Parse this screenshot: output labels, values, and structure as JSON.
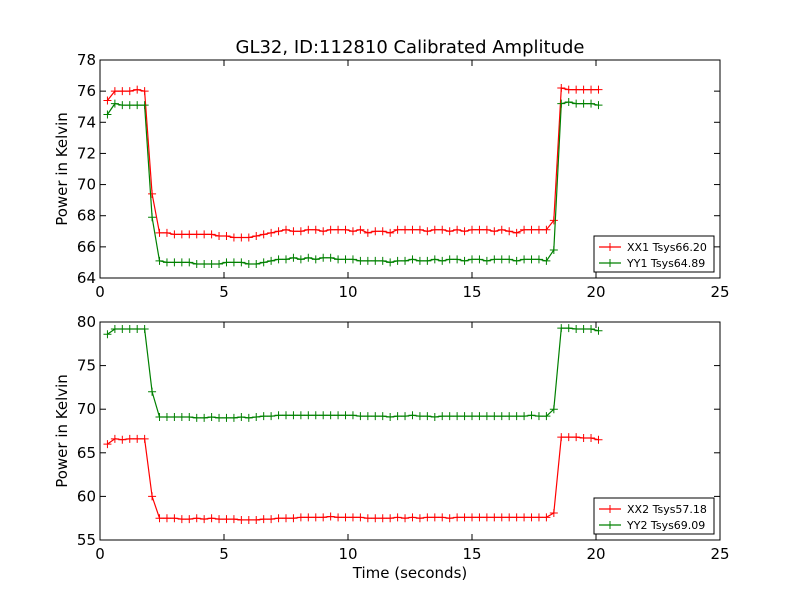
{
  "figure": {
    "title": "GL32, ID:112810 Calibrated Amplitude"
  },
  "chart_data": [
    {
      "type": "line",
      "title": "GL32, ID:112810 Calibrated Amplitude",
      "xlabel": "",
      "ylabel": "Power in Kelvin",
      "xlim": [
        0,
        25
      ],
      "ylim": [
        64,
        78
      ],
      "xticks": [
        0,
        5,
        10,
        15,
        20,
        25
      ],
      "yticks": [
        64,
        66,
        68,
        70,
        72,
        74,
        76,
        78
      ],
      "grid": false,
      "legend": "bottom-right",
      "x": [
        0.3,
        0.6,
        0.9,
        1.2,
        1.5,
        1.8,
        2.1,
        2.4,
        2.7,
        3.0,
        3.3,
        3.6,
        3.9,
        4.2,
        4.5,
        4.8,
        5.1,
        5.4,
        5.7,
        6.0,
        6.3,
        6.6,
        6.9,
        7.2,
        7.5,
        7.8,
        8.1,
        8.4,
        8.7,
        9.0,
        9.3,
        9.6,
        9.9,
        10.2,
        10.5,
        10.8,
        11.1,
        11.4,
        11.7,
        12.0,
        12.3,
        12.6,
        12.9,
        13.2,
        13.5,
        13.8,
        14.1,
        14.4,
        14.7,
        15.0,
        15.3,
        15.6,
        15.9,
        16.2,
        16.5,
        16.8,
        17.1,
        17.4,
        17.7,
        18.0,
        18.3,
        18.6,
        18.9,
        19.2,
        19.5,
        19.8,
        20.1
      ],
      "series": [
        {
          "name": "XX1 Tsys66.20",
          "color": "#ff0000",
          "values": [
            75.4,
            76.0,
            76.0,
            76.0,
            76.1,
            76.0,
            69.4,
            66.9,
            66.9,
            66.8,
            66.8,
            66.8,
            66.8,
            66.8,
            66.8,
            66.7,
            66.7,
            66.6,
            66.6,
            66.6,
            66.7,
            66.8,
            66.9,
            67.0,
            67.1,
            67.0,
            67.0,
            67.1,
            67.1,
            67.0,
            67.1,
            67.1,
            67.1,
            67.0,
            67.1,
            66.9,
            67.0,
            67.0,
            66.9,
            67.1,
            67.1,
            67.1,
            67.1,
            67.0,
            67.1,
            67.1,
            67.0,
            67.1,
            67.0,
            67.1,
            67.1,
            67.1,
            67.0,
            67.1,
            67.0,
            66.9,
            67.1,
            67.1,
            67.1,
            67.1,
            67.7,
            76.2,
            76.1,
            76.1,
            76.1,
            76.1,
            76.1
          ]
        },
        {
          "name": "YY1 Tsys64.89",
          "color": "#008000",
          "values": [
            74.5,
            75.2,
            75.1,
            75.1,
            75.1,
            75.1,
            67.9,
            65.1,
            65.0,
            65.0,
            65.0,
            65.0,
            64.9,
            64.9,
            64.9,
            64.9,
            65.0,
            65.0,
            65.0,
            64.9,
            64.9,
            65.0,
            65.1,
            65.2,
            65.2,
            65.3,
            65.2,
            65.3,
            65.2,
            65.3,
            65.3,
            65.2,
            65.2,
            65.2,
            65.1,
            65.1,
            65.1,
            65.1,
            65.0,
            65.1,
            65.1,
            65.2,
            65.1,
            65.1,
            65.2,
            65.1,
            65.2,
            65.2,
            65.1,
            65.2,
            65.2,
            65.1,
            65.2,
            65.2,
            65.2,
            65.1,
            65.2,
            65.2,
            65.2,
            65.1,
            65.8,
            75.2,
            75.3,
            75.2,
            75.2,
            75.2,
            75.1
          ]
        }
      ]
    },
    {
      "type": "line",
      "title": "",
      "xlabel": "Time (seconds)",
      "ylabel": "Power in Kelvin",
      "xlim": [
        0,
        25
      ],
      "ylim": [
        55,
        80
      ],
      "xticks": [
        0,
        5,
        10,
        15,
        20,
        25
      ],
      "yticks": [
        55,
        60,
        65,
        70,
        75,
        80
      ],
      "grid": false,
      "legend": "bottom-right",
      "x": [
        0.3,
        0.6,
        0.9,
        1.2,
        1.5,
        1.8,
        2.1,
        2.4,
        2.7,
        3.0,
        3.3,
        3.6,
        3.9,
        4.2,
        4.5,
        4.8,
        5.1,
        5.4,
        5.7,
        6.0,
        6.3,
        6.6,
        6.9,
        7.2,
        7.5,
        7.8,
        8.1,
        8.4,
        8.7,
        9.0,
        9.3,
        9.6,
        9.9,
        10.2,
        10.5,
        10.8,
        11.1,
        11.4,
        11.7,
        12.0,
        12.3,
        12.6,
        12.9,
        13.2,
        13.5,
        13.8,
        14.1,
        14.4,
        14.7,
        15.0,
        15.3,
        15.6,
        15.9,
        16.2,
        16.5,
        16.8,
        17.1,
        17.4,
        17.7,
        18.0,
        18.3,
        18.6,
        18.9,
        19.2,
        19.5,
        19.8,
        20.1
      ],
      "series": [
        {
          "name": "XX2 Tsys57.18",
          "color": "#ff0000",
          "values": [
            66.0,
            66.6,
            66.5,
            66.6,
            66.6,
            66.6,
            60.0,
            57.5,
            57.5,
            57.5,
            57.4,
            57.4,
            57.5,
            57.4,
            57.5,
            57.4,
            57.4,
            57.4,
            57.3,
            57.3,
            57.3,
            57.4,
            57.4,
            57.5,
            57.5,
            57.5,
            57.6,
            57.6,
            57.6,
            57.6,
            57.7,
            57.6,
            57.6,
            57.6,
            57.6,
            57.5,
            57.5,
            57.5,
            57.5,
            57.6,
            57.5,
            57.6,
            57.5,
            57.6,
            57.6,
            57.6,
            57.5,
            57.6,
            57.6,
            57.6,
            57.6,
            57.6,
            57.6,
            57.6,
            57.6,
            57.6,
            57.6,
            57.6,
            57.6,
            57.6,
            58.1,
            66.8,
            66.8,
            66.8,
            66.7,
            66.7,
            66.5
          ]
        },
        {
          "name": "YY2 Tsys69.09",
          "color": "#008000",
          "values": [
            78.6,
            79.2,
            79.2,
            79.2,
            79.2,
            79.2,
            72.0,
            69.1,
            69.1,
            69.1,
            69.1,
            69.1,
            69.0,
            69.0,
            69.1,
            69.0,
            69.0,
            69.0,
            69.1,
            69.0,
            69.1,
            69.2,
            69.2,
            69.3,
            69.3,
            69.3,
            69.3,
            69.3,
            69.3,
            69.3,
            69.3,
            69.3,
            69.3,
            69.3,
            69.2,
            69.2,
            69.2,
            69.2,
            69.1,
            69.2,
            69.2,
            69.3,
            69.2,
            69.2,
            69.1,
            69.2,
            69.2,
            69.2,
            69.2,
            69.2,
            69.2,
            69.2,
            69.2,
            69.2,
            69.2,
            69.2,
            69.2,
            69.3,
            69.2,
            69.2,
            70.0,
            79.3,
            79.3,
            79.2,
            79.2,
            79.2,
            79.0
          ]
        }
      ]
    }
  ]
}
